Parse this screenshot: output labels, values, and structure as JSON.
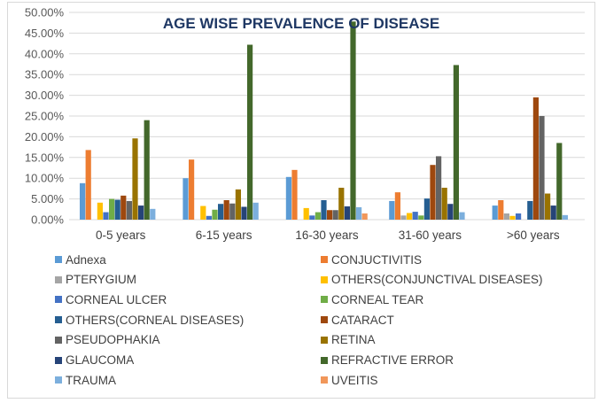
{
  "chart_data": {
    "type": "bar",
    "title": "AGE WISE PREVALENCE OF DISEASE",
    "xlabel": "",
    "ylabel": "",
    "ylim": [
      0,
      0.5
    ],
    "y_ticks": [
      "0.00%",
      "5.00%",
      "10.00%",
      "15.00%",
      "20.00%",
      "25.00%",
      "30.00%",
      "35.00%",
      "40.00%",
      "45.00%",
      "50.00%"
    ],
    "y_tick_values": [
      0,
      0.05,
      0.1,
      0.15,
      0.2,
      0.25,
      0.3,
      0.35,
      0.4,
      0.45,
      0.5
    ],
    "grid": true,
    "legend_position": "bottom",
    "categories": [
      "0-5 years",
      "6-15 years",
      "16-30 years",
      "31-60 years",
      ">60 years"
    ],
    "series": [
      {
        "name": "Adnexa",
        "color": "#5b9bd5",
        "values": [
          0.088,
          0.1,
          0.103,
          0.045,
          0.034
        ]
      },
      {
        "name": "CONJUCTIVITIS",
        "color": "#ed7d31",
        "values": [
          0.168,
          0.145,
          0.12,
          0.066,
          0.047
        ]
      },
      {
        "name": "PTERYGIUM",
        "color": "#a5a5a5",
        "values": [
          0.0,
          0.0,
          0.0,
          0.01,
          0.015
        ]
      },
      {
        "name": "OTHERS(CONJUNCTIVAL DISEASES)",
        "color": "#ffc000",
        "values": [
          0.041,
          0.033,
          0.028,
          0.016,
          0.009
        ]
      },
      {
        "name": "CORNEAL ULCER",
        "color": "#4472c4",
        "values": [
          0.018,
          0.009,
          0.01,
          0.019,
          0.015
        ]
      },
      {
        "name": "CORNEAL TEAR",
        "color": "#70ad47",
        "values": [
          0.05,
          0.024,
          0.018,
          0.01,
          0.0
        ]
      },
      {
        "name": "OTHERS(CORNEAL DISEASES)",
        "color": "#255e91",
        "values": [
          0.048,
          0.038,
          0.047,
          0.051,
          0.045
        ]
      },
      {
        "name": "CATARACT",
        "color": "#9e480e",
        "values": [
          0.058,
          0.047,
          0.023,
          0.132,
          0.295
        ]
      },
      {
        "name": "PSEUDOPHAKIA",
        "color": "#636363",
        "values": [
          0.045,
          0.039,
          0.023,
          0.153,
          0.25
        ]
      },
      {
        "name": "RETINA",
        "color": "#997300",
        "values": [
          0.196,
          0.073,
          0.077,
          0.077,
          0.063
        ]
      },
      {
        "name": "GLAUCOMA",
        "color": "#264478",
        "values": [
          0.034,
          0.031,
          0.032,
          0.038,
          0.034
        ]
      },
      {
        "name": "REFRACTIVE ERROR",
        "color": "#43682b",
        "values": [
          0.24,
          0.422,
          0.478,
          0.373,
          0.185
        ]
      },
      {
        "name": "TRAUMA",
        "color": "#7cafdd",
        "values": [
          0.026,
          0.041,
          0.03,
          0.018,
          0.011
        ]
      },
      {
        "name": "UVEITIS",
        "color": "#f1975a",
        "values": [
          0.0,
          0.0,
          0.015,
          0.0,
          0.0
        ]
      }
    ]
  }
}
